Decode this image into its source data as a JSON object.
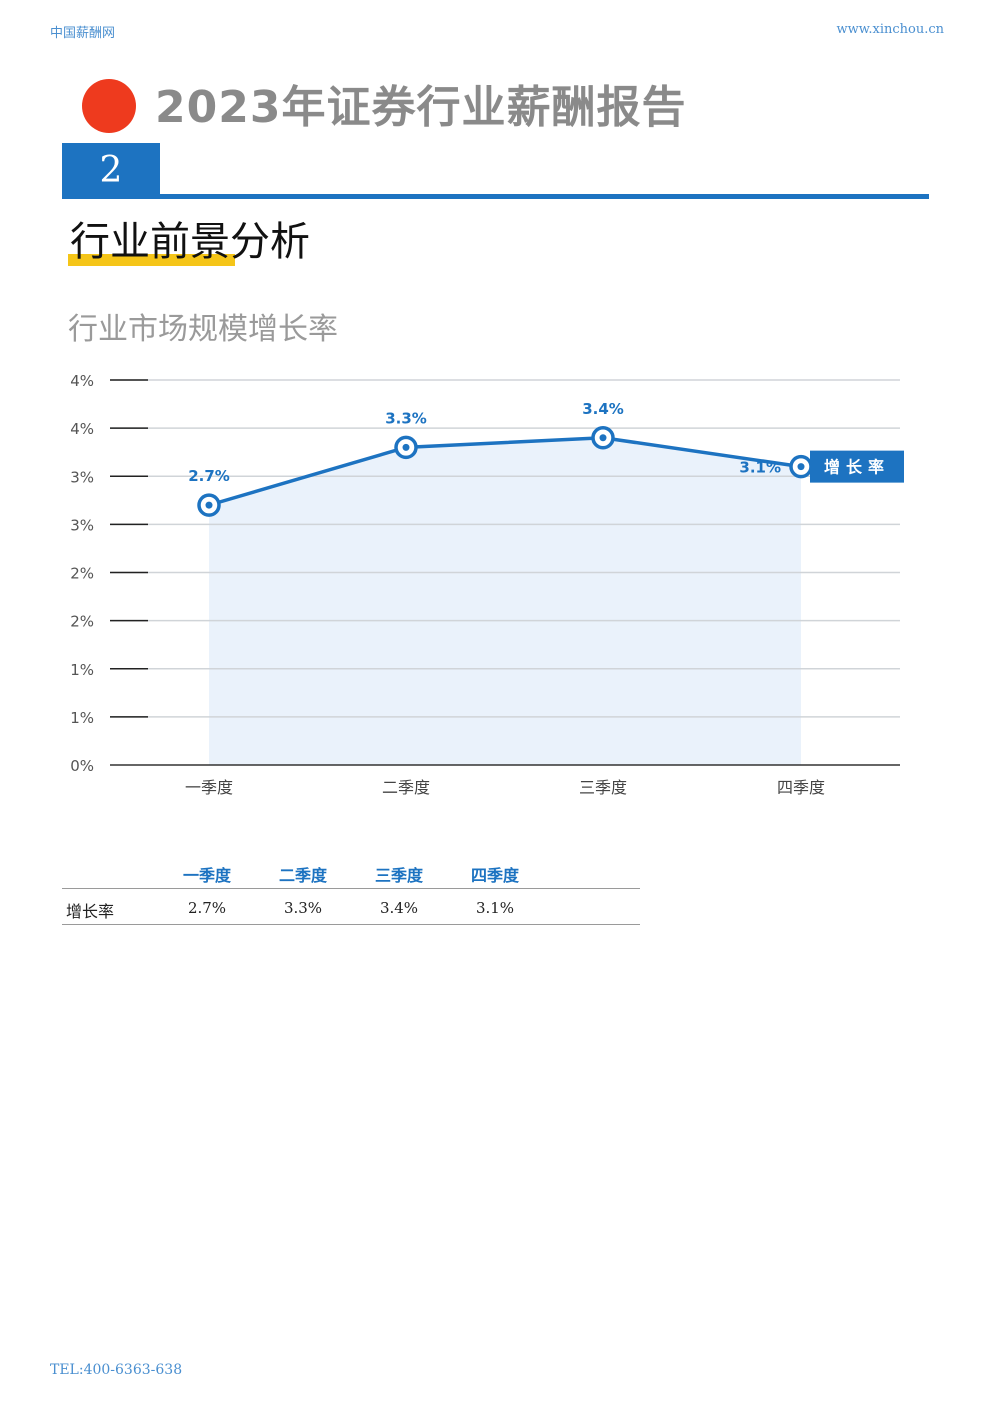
{
  "header": {
    "left": "中国薪酬网",
    "right": "www.xinchou.cn"
  },
  "report_title": "2023年证券行业薪酬报告",
  "section": {
    "number": "2",
    "title": "行业前景分析"
  },
  "colors": {
    "accent": "#1d73c1",
    "dot": "#ee3a1e",
    "highlight": "#f5c518",
    "area": "#eaf2fb"
  },
  "chart_data": {
    "type": "line",
    "title": "行业市场规模增长率",
    "categories": [
      "一季度",
      "二季度",
      "三季度",
      "四季度"
    ],
    "series": [
      {
        "name": "增长率",
        "values": [
          2.7,
          3.3,
          3.4,
          3.1
        ],
        "labels": [
          "2.7%",
          "3.3%",
          "3.4%",
          "3.1%"
        ]
      }
    ],
    "ylim": [
      0,
      4
    ],
    "yticks": [
      0,
      0.5,
      1,
      1.5,
      2,
      2.5,
      3,
      3.5,
      4
    ],
    "ytick_labels": [
      "0%",
      "1%",
      "1%",
      "2%",
      "2%",
      "3%",
      "3%",
      "4%",
      "4%"
    ],
    "grid": true,
    "area_fill": true,
    "legend": "right"
  },
  "table": {
    "headers": [
      "一季度",
      "二季度",
      "三季度",
      "四季度"
    ],
    "row_label": "增长率",
    "values": [
      "2.7%",
      "3.3%",
      "3.4%",
      "3.1%"
    ]
  },
  "footer": "TEL:400-6363-638"
}
